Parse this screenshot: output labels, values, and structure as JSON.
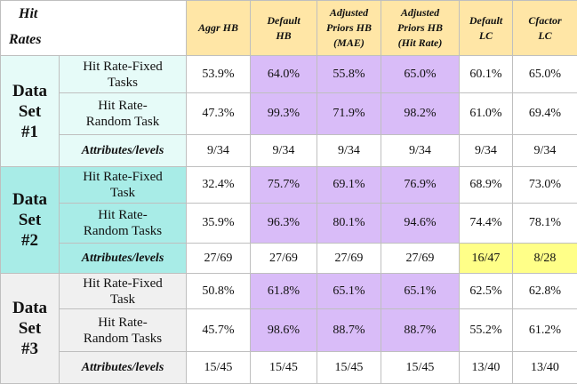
{
  "corner": {
    "line1": "Hit",
    "line2": "Rates"
  },
  "headers": [
    {
      "lines": [
        "Aggr HB"
      ]
    },
    {
      "lines": [
        "Default",
        "HB"
      ]
    },
    {
      "lines": [
        "Adjusted",
        "Priors HB",
        "(MAE)"
      ]
    },
    {
      "lines": [
        "Adjusted",
        "Priors HB",
        "(Hit Rate)"
      ]
    },
    {
      "lines": [
        "Default",
        "LC"
      ]
    },
    {
      "lines": [
        "Cfactor",
        "LC"
      ]
    }
  ],
  "sets": [
    {
      "label": [
        "Data",
        "Set",
        "#1"
      ],
      "rows": [
        {
          "label": [
            "Hit Rate-Fixed",
            "Tasks"
          ],
          "values": [
            "53.9%",
            "64.0%",
            "55.8%",
            "65.0%",
            "60.1%",
            "65.0%"
          ]
        },
        {
          "label": [
            "Hit Rate-",
            "Random Task"
          ],
          "values": [
            "47.3%",
            "99.3%",
            "71.9%",
            "98.2%",
            "61.0%",
            "69.4%"
          ]
        },
        {
          "label": [
            "Attributes/levels"
          ],
          "values": [
            "9/34",
            "9/34",
            "9/34",
            "9/34",
            "9/34",
            "9/34"
          ]
        }
      ]
    },
    {
      "label": [
        "Data",
        "Set",
        "#2"
      ],
      "rows": [
        {
          "label": [
            "Hit Rate-Fixed",
            "Task"
          ],
          "values": [
            "32.4%",
            "75.7%",
            "69.1%",
            "76.9%",
            "68.9%",
            "73.0%"
          ]
        },
        {
          "label": [
            "Hit Rate-",
            "Random Tasks"
          ],
          "values": [
            "35.9%",
            "96.3%",
            "80.1%",
            "94.6%",
            "74.4%",
            "78.1%"
          ]
        },
        {
          "label": [
            "Attributes/levels"
          ],
          "values": [
            "27/69",
            "27/69",
            "27/69",
            "27/69",
            "16/47",
            "8/28"
          ]
        }
      ]
    },
    {
      "label": [
        "Data",
        "Set",
        "#3"
      ],
      "rows": [
        {
          "label": [
            "Hit Rate-Fixed",
            "Task"
          ],
          "values": [
            "50.8%",
            "61.8%",
            "65.1%",
            "65.1%",
            "62.5%",
            "62.8%"
          ]
        },
        {
          "label": [
            "Hit Rate-",
            "Random Tasks"
          ],
          "values": [
            "45.7%",
            "98.6%",
            "88.7%",
            "88.7%",
            "55.2%",
            "61.2%"
          ]
        },
        {
          "label": [
            "Attributes/levels"
          ],
          "values": [
            "15/45",
            "15/45",
            "15/45",
            "15/45",
            "13/40",
            "13/40"
          ]
        }
      ]
    }
  ],
  "colors": {
    "header_bg": "#ffe6a6",
    "highlight_purple": "#d9bcf8",
    "highlight_yellow": "#ffff88",
    "set1_bg": "#e6fbf8",
    "set2_bg": "#a8ece7",
    "set3_bg": "#f0f0f0"
  }
}
